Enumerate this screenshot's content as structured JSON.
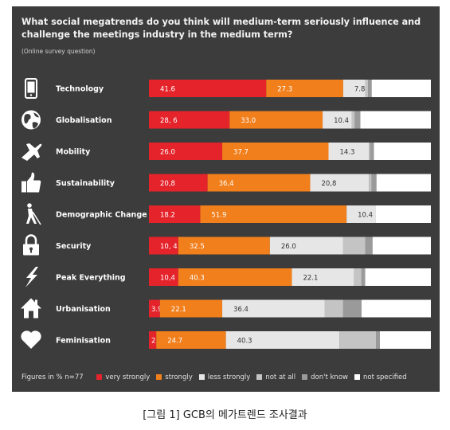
{
  "chart_data": {
    "type": "bar",
    "orientation": "horizontal",
    "stacked": true,
    "title": "What social megatrends do you think will  medium-term seriously influence and challenge the meetings industry in the medium term?",
    "subtitle": "(Online survey question)",
    "note": "Figures in % n=77",
    "categories": [
      "Technology",
      "Globalisation",
      "Mobility",
      "Sustainability",
      "Demographic Change",
      "Security",
      "Peak Everything",
      "Urbanisation",
      "Feminisation"
    ],
    "icons": [
      "smartphone-icon",
      "globe-icon",
      "airplane-icon",
      "thumbs-up-icon",
      "walking-cane-icon",
      "padlock-icon",
      "lightning-bolt-icon",
      "house-icon",
      "heart-icon"
    ],
    "series": [
      {
        "name": "very strongly",
        "color": "#e4232b",
        "values": [
          41.6,
          28.6,
          26.0,
          20.8,
          18.2,
          10.4,
          10.4,
          3.9,
          2.6
        ],
        "labels": [
          "41.6",
          "28, 6",
          "26.0",
          "20,8",
          "18.2",
          "10, 4",
          "10,4",
          "3.9",
          "2.6"
        ]
      },
      {
        "name": "strongly",
        "color": "#f07f1c",
        "values": [
          27.3,
          33.0,
          37.7,
          36.4,
          51.9,
          32.5,
          40.3,
          22.1,
          24.7
        ],
        "labels": [
          "27.3",
          "33.0",
          "37.7",
          "36,4",
          "51.9",
          "32.5",
          "40.3",
          "22.1",
          "24.7"
        ]
      },
      {
        "name": "less strongly",
        "color": "#e6e6e6",
        "values": [
          7.8,
          10.4,
          14.3,
          20.8,
          10.4,
          26.0,
          22.1,
          36.4,
          40.3
        ],
        "labels": [
          "7.8",
          "10.4",
          "14.3",
          "20,8",
          "10.4",
          "26.0",
          "22.1",
          "36.4",
          "40.3"
        ]
      },
      {
        "name": "not at all",
        "color": "#c4c4c4",
        "values": [
          1.0,
          1.0,
          0.5,
          1.0,
          0.0,
          7.8,
          2.6,
          6.5,
          13.0
        ]
      },
      {
        "name": "don't know",
        "color": "#9a9a9a",
        "values": [
          1.3,
          2.0,
          1.3,
          1.7,
          0.0,
          2.6,
          1.3,
          6.5,
          1.3
        ]
      },
      {
        "name": "not specified",
        "color": "#ffffff",
        "values": [
          21.0,
          25.0,
          20.2,
          19.3,
          19.5,
          20.7,
          23.3,
          24.6,
          18.1
        ]
      }
    ],
    "xlim": [
      0,
      100
    ]
  },
  "caption": "[그림 1] GCB의 메가트렌드 조사결과"
}
